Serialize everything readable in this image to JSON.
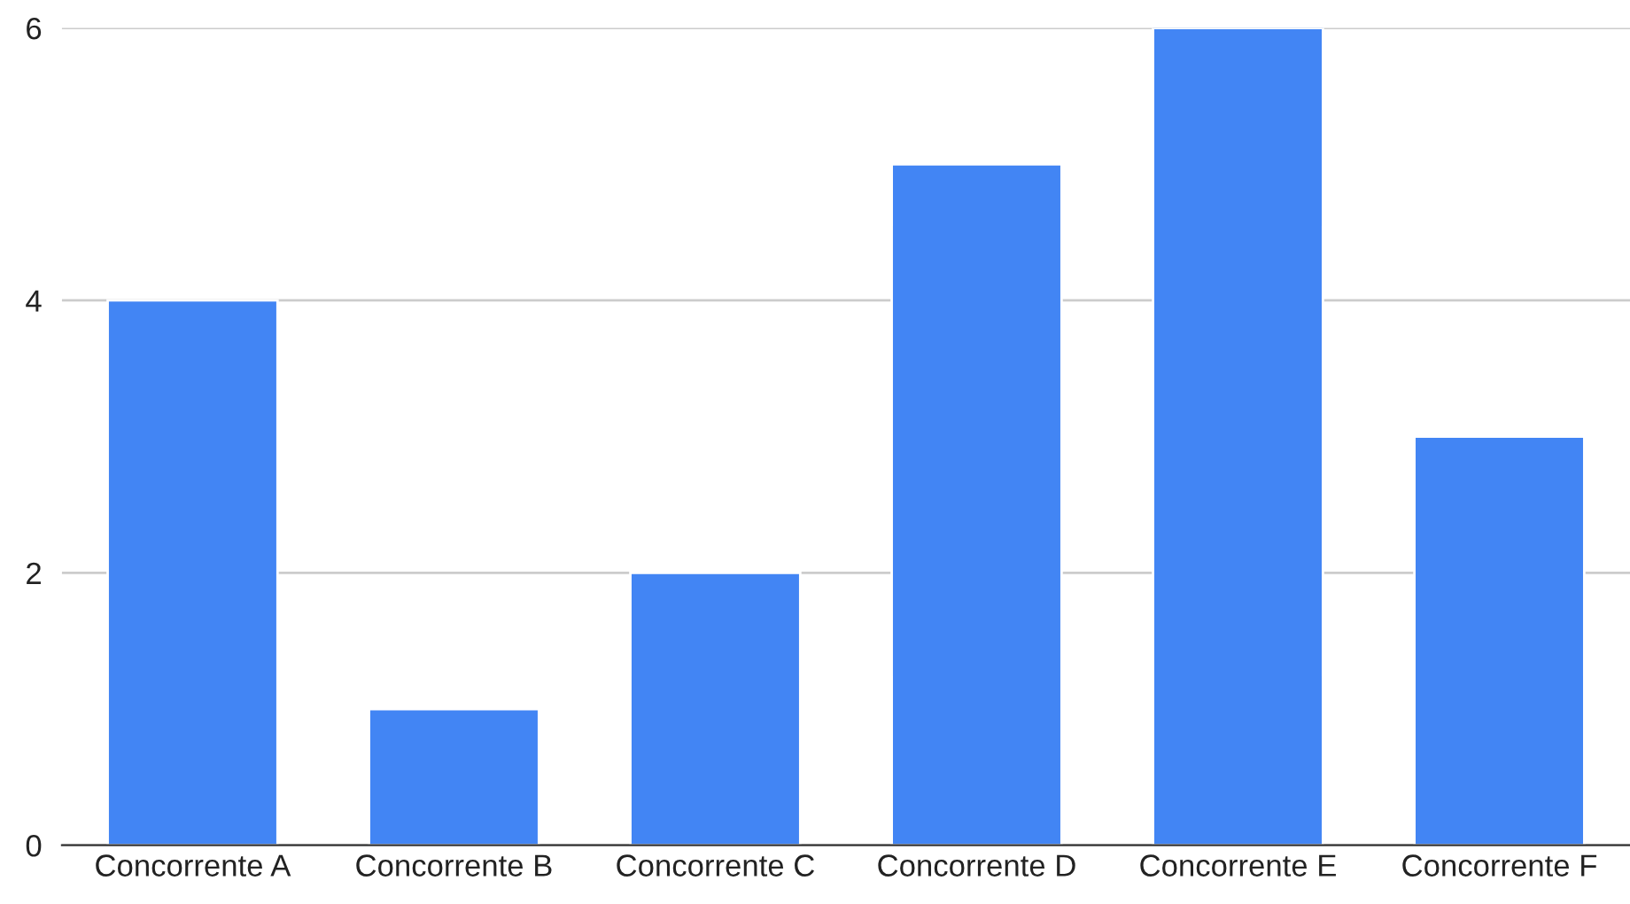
{
  "chart_data": {
    "type": "bar",
    "categories": [
      "Concorrente A",
      "Concorrente B",
      "Concorrente C",
      "Concorrente D",
      "Concorrente E",
      "Concorrente F"
    ],
    "values": [
      4,
      1,
      2,
      5,
      6,
      3
    ],
    "color": "#4285f4",
    "ylim": [
      0,
      6
    ],
    "yticks": [
      0,
      2,
      4,
      6
    ],
    "grid": "y",
    "legend": false
  }
}
